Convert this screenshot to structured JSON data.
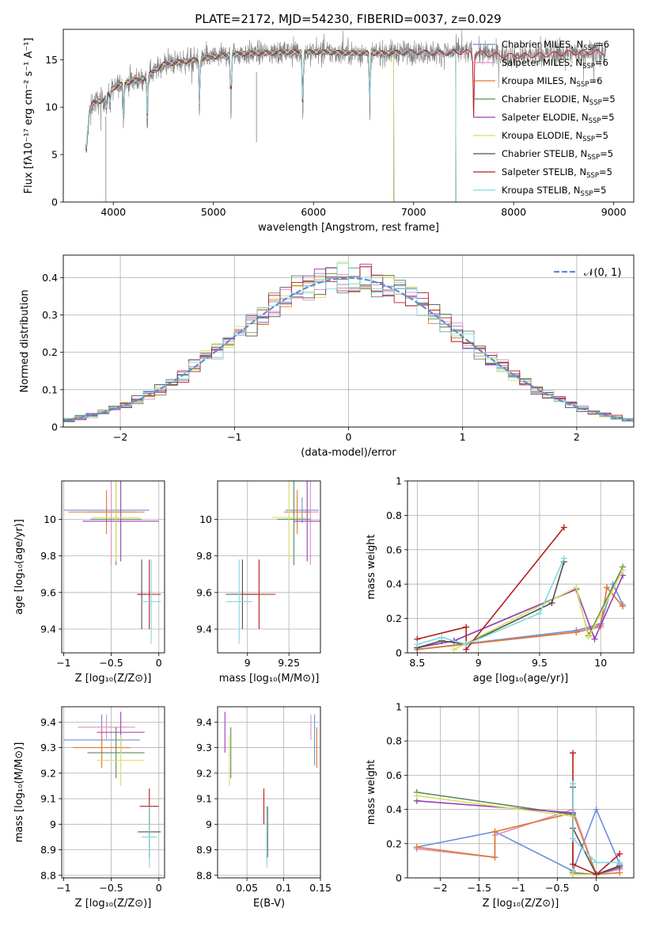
{
  "figure": {
    "title": "PLATE=2172, MJD=54230, FIBERID=0037, z=0.029"
  },
  "colors": {
    "Chabrier MILES": "#6b8fd8",
    "Salpeter MILES": "#e08fc0",
    "Kroupa MILES": "#e07a30",
    "Chabrier ELODIE": "#5a8a5a",
    "Salpeter ELODIE": "#9a3fb8",
    "Kroupa ELODIE": "#d8e060",
    "Chabrier STELIB": "#505050",
    "Salpeter STELIB": "#b81c1c",
    "Kroupa STELIB": "#80d8e0",
    "data": "#808080",
    "normal": "#5b8fd0",
    "grid": "#b0b0b0"
  },
  "legend_spectrum": [
    {
      "key": "Chabrier MILES",
      "pre": "Chabrier MILES, N",
      "sub": "SSP",
      "post": "=6"
    },
    {
      "key": "Salpeter MILES",
      "pre": "Salpeter MILES, N",
      "sub": "SSP",
      "post": "=6"
    },
    {
      "key": "Kroupa MILES",
      "pre": "Kroupa MILES, N",
      "sub": "SSP",
      "post": "=6"
    },
    {
      "key": "Chabrier ELODIE",
      "pre": "Chabrier ELODIE, N",
      "sub": "SSP",
      "post": "=5"
    },
    {
      "key": "Salpeter ELODIE",
      "pre": "Salpeter ELODIE, N",
      "sub": "SSP",
      "post": "=5"
    },
    {
      "key": "Kroupa ELODIE",
      "pre": "Kroupa ELODIE, N",
      "sub": "SSP",
      "post": "=5"
    },
    {
      "key": "Chabrier STELIB",
      "pre": "Chabrier STELIB, N",
      "sub": "SSP",
      "post": "=5"
    },
    {
      "key": "Salpeter STELIB",
      "pre": "Salpeter STELIB, N",
      "sub": "SSP",
      "post": "=5"
    },
    {
      "key": "Kroupa STELIB",
      "pre": "Kroupa STELIB, N",
      "sub": "SSP",
      "post": "=5"
    }
  ],
  "chart_data": [
    {
      "id": "spectrum",
      "type": "line",
      "xlabel": "wavelength [Angstrom, rest frame]",
      "ylabel": "Flux [fλ10⁻¹⁷ erg cm⁻² s⁻¹ A⁻¹]",
      "xlim": [
        3500,
        9200
      ],
      "ylim": [
        0,
        18.2
      ],
      "xticks": [
        4000,
        5000,
        6000,
        7000,
        8000,
        9000
      ],
      "yticks": [
        0,
        5,
        10,
        15
      ],
      "continuum": [
        [
          3730,
          5.5
        ],
        [
          3760,
          9.5
        ],
        [
          3800,
          10.5
        ],
        [
          3900,
          10.7
        ],
        [
          4000,
          12.0
        ],
        [
          4100,
          12.5
        ],
        [
          4300,
          13.0
        ],
        [
          4500,
          14.5
        ],
        [
          4700,
          14.8
        ],
        [
          4900,
          15.1
        ],
        [
          5200,
          15.6
        ],
        [
          5500,
          15.7
        ],
        [
          5800,
          15.8
        ],
        [
          6100,
          15.8
        ],
        [
          6400,
          15.7
        ],
        [
          6700,
          15.7
        ],
        [
          7000,
          15.8
        ],
        [
          7300,
          15.7
        ],
        [
          7420,
          15.8
        ],
        [
          7600,
          15.8
        ],
        [
          7800,
          15.5
        ],
        [
          8000,
          15.4
        ],
        [
          8300,
          15.5
        ],
        [
          8500,
          15.7
        ],
        [
          8800,
          15.8
        ],
        [
          8900,
          15.7
        ]
      ],
      "data_range": [
        3720,
        8920
      ],
      "dips": [
        [
          3933,
          3
        ],
        [
          3968,
          2
        ],
        [
          4102,
          8
        ],
        [
          4340,
          9
        ],
        [
          4861,
          10
        ],
        [
          5175,
          12
        ],
        [
          5893,
          13
        ],
        [
          6563,
          12
        ],
        [
          7600,
          14
        ]
      ],
      "model_ranges": [
        [
          3730,
          7420
        ],
        [
          3730,
          8900
        ],
        [
          3730,
          7420
        ],
        [
          3730,
          6800
        ],
        [
          3730,
          6800
        ],
        [
          3730,
          6800
        ],
        [
          3730,
          7420
        ],
        [
          3730,
          8900
        ],
        [
          3730,
          7420
        ]
      ]
    },
    {
      "id": "residuals",
      "type": "step",
      "xlabel": "(data-model)/error",
      "ylabel": "Normed distribution",
      "xlim": [
        -2.5,
        2.5
      ],
      "ylim": [
        0,
        0.46
      ],
      "xticks": [
        -2,
        -1,
        0,
        1,
        2
      ],
      "yticks": [
        0.0,
        0.1,
        0.2,
        0.3,
        0.4
      ],
      "bin_width": 0.1,
      "legend": {
        "label": "𝒩(0, 1)",
        "placement": "upper right"
      }
    },
    {
      "id": "age-vs-Z",
      "type": "errorbar",
      "xlabel": "Z [log₁₀(Z/Z⊙)]",
      "ylabel": "age  [log₁₀(age/yr)]",
      "xlim": [
        -1.02,
        0.06
      ],
      "ylim": [
        9.27,
        10.21
      ],
      "xticks": [
        -1.0,
        -0.5,
        0.0
      ],
      "yticks": [
        9.4,
        9.6,
        9.8,
        10.0
      ],
      "points": [
        {
          "m": "Chabrier MILES",
          "x": -0.55,
          "y": 10.05,
          "xe": 0.45,
          "ye": 0.07
        },
        {
          "m": "Salpeter MILES",
          "x": -0.5,
          "y": 10.04,
          "xe": 0.25,
          "ye": 0.29
        },
        {
          "m": "Kroupa MILES",
          "x": -0.55,
          "y": 10.04,
          "xe": 0.4,
          "ye": 0.12
        },
        {
          "m": "Chabrier ELODIE",
          "x": -0.45,
          "y": 10.0,
          "xe": 0.27,
          "ye": 0.25
        },
        {
          "m": "Salpeter ELODIE",
          "x": -0.4,
          "y": 9.99,
          "xe": 0.4,
          "ye": 0.22
        },
        {
          "m": "Kroupa ELODIE",
          "x": -0.45,
          "y": 10.01,
          "xe": 0.25,
          "ye": 0.24
        },
        {
          "m": "Chabrier STELIB",
          "x": -0.18,
          "y": 9.59,
          "xe": 0.05,
          "ye": 0.19
        },
        {
          "m": "Salpeter STELIB",
          "x": -0.1,
          "y": 9.59,
          "xe": 0.12,
          "ye": 0.19
        },
        {
          "m": "Kroupa STELIB",
          "x": -0.08,
          "y": 9.55,
          "xe": 0.1,
          "ye": 0.23
        }
      ]
    },
    {
      "id": "age-vs-mass",
      "type": "errorbar",
      "xlabel": "mass [log₁₀(M/M⊙)]",
      "xlim": [
        8.82,
        9.44
      ],
      "ylim": [
        9.27,
        10.21
      ],
      "xticks": [
        9.0,
        9.25
      ],
      "yticks": [
        9.4,
        9.6,
        9.8,
        10.0
      ],
      "points": [
        {
          "m": "Chabrier MILES",
          "x": 9.33,
          "y": 10.05,
          "xe": 0.1,
          "ye": 0.07
        },
        {
          "m": "Salpeter MILES",
          "x": 9.38,
          "y": 10.04,
          "xe": 0.05,
          "ye": 0.29
        },
        {
          "m": "Kroupa MILES",
          "x": 9.3,
          "y": 10.04,
          "xe": 0.08,
          "ye": 0.12
        },
        {
          "m": "Chabrier ELODIE",
          "x": 9.28,
          "y": 10.0,
          "xe": 0.1,
          "ye": 0.25
        },
        {
          "m": "Salpeter ELODIE",
          "x": 9.36,
          "y": 9.99,
          "xe": 0.08,
          "ye": 0.22
        },
        {
          "m": "Kroupa ELODIE",
          "x": 9.25,
          "y": 10.01,
          "xe": 0.1,
          "ye": 0.24
        },
        {
          "m": "Chabrier STELIB",
          "x": 8.97,
          "y": 9.59,
          "xe": 0.1,
          "ye": 0.19
        },
        {
          "m": "Salpeter STELIB",
          "x": 9.07,
          "y": 9.59,
          "xe": 0.1,
          "ye": 0.19
        },
        {
          "m": "Kroupa STELIB",
          "x": 8.95,
          "y": 9.55,
          "xe": 0.08,
          "ye": 0.23
        }
      ]
    },
    {
      "id": "weight-vs-age",
      "type": "line",
      "xlabel": "age  [log₁₀(age/yr)]",
      "ylabel": "mass weight",
      "xlim": [
        8.42,
        10.27
      ],
      "ylim": [
        0,
        1.0
      ],
      "xticks": [
        8.5,
        9.0,
        9.5,
        10.0
      ],
      "yticks": [
        0.0,
        0.2,
        0.4,
        0.6,
        0.8,
        1.0
      ],
      "series": [
        {
          "m": "Chabrier MILES",
          "x": [
            8.5,
            9.8,
            10.0,
            10.1,
            10.18
          ],
          "y": [
            0.02,
            0.13,
            0.17,
            0.4,
            0.28
          ]
        },
        {
          "m": "Salpeter MILES",
          "x": [
            8.5,
            9.8,
            10.0,
            10.05,
            10.18
          ],
          "y": [
            0.02,
            0.12,
            0.15,
            0.38,
            0.27
          ]
        },
        {
          "m": "Kroupa MILES",
          "x": [
            8.5,
            9.8,
            10.0,
            10.05,
            10.18
          ],
          "y": [
            0.02,
            0.12,
            0.16,
            0.38,
            0.27
          ]
        },
        {
          "m": "Chabrier ELODIE",
          "x": [
            8.5,
            8.8,
            9.8,
            9.9,
            10.18
          ],
          "y": [
            0.03,
            0.07,
            0.37,
            0.1,
            0.5
          ]
        },
        {
          "m": "Salpeter ELODIE",
          "x": [
            8.5,
            8.8,
            9.8,
            9.95,
            10.18
          ],
          "y": [
            0.03,
            0.07,
            0.37,
            0.08,
            0.45
          ]
        },
        {
          "m": "Kroupa ELODIE",
          "x": [
            8.8,
            9.8,
            9.9,
            10.18
          ],
          "y": [
            0.02,
            0.38,
            0.09,
            0.48
          ]
        },
        {
          "m": "Chabrier STELIB",
          "x": [
            8.5,
            8.7,
            8.9,
            9.6,
            9.7
          ],
          "y": [
            0.03,
            0.07,
            0.05,
            0.29,
            0.53
          ]
        },
        {
          "m": "Salpeter STELIB",
          "x": [
            8.5,
            8.9,
            8.9,
            9.7
          ],
          "y": [
            0.08,
            0.15,
            0.02,
            0.73
          ]
        },
        {
          "m": "Kroupa STELIB",
          "x": [
            8.5,
            8.7,
            8.9,
            9.5,
            9.7
          ],
          "y": [
            0.05,
            0.09,
            0.05,
            0.23,
            0.55
          ]
        }
      ]
    },
    {
      "id": "mass-vs-Z",
      "type": "errorbar",
      "xlabel": "Z [log₁₀(Z/Z⊙)]",
      "ylabel": "mass [log₁₀(M/M⊙)]",
      "xlim": [
        -1.02,
        0.06
      ],
      "ylim": [
        8.79,
        9.46
      ],
      "xticks": [
        -1.0,
        -0.5,
        0.0
      ],
      "yticks": [
        8.8,
        8.9,
        9.0,
        9.1,
        9.2,
        9.3,
        9.4
      ],
      "points": [
        {
          "m": "Chabrier MILES",
          "x": -0.6,
          "y": 9.33,
          "xe": 0.4,
          "ye": 0.1
        },
        {
          "m": "Salpeter MILES",
          "x": -0.55,
          "y": 9.38,
          "xe": 0.3,
          "ye": 0.05
        },
        {
          "m": "Kroupa MILES",
          "x": -0.6,
          "y": 9.3,
          "xe": 0.3,
          "ye": 0.08
        },
        {
          "m": "Chabrier ELODIE",
          "x": -0.45,
          "y": 9.28,
          "xe": 0.3,
          "ye": 0.1
        },
        {
          "m": "Salpeter ELODIE",
          "x": -0.4,
          "y": 9.36,
          "xe": 0.25,
          "ye": 0.08
        },
        {
          "m": "Kroupa ELODIE",
          "x": -0.4,
          "y": 9.25,
          "xe": 0.25,
          "ye": 0.1
        },
        {
          "m": "Chabrier STELIB",
          "x": -0.1,
          "y": 8.97,
          "xe": 0.12,
          "ye": 0.1
        },
        {
          "m": "Salpeter STELIB",
          "x": -0.1,
          "y": 9.07,
          "xe": 0.1,
          "ye": 0.07
        },
        {
          "m": "Kroupa STELIB",
          "x": -0.1,
          "y": 8.95,
          "xe": 0.08,
          "ye": 0.12
        }
      ]
    },
    {
      "id": "mass-vs-EBV",
      "type": "errorbar",
      "xlabel": "E(B-V)",
      "xlim": [
        0.01,
        0.15
      ],
      "ylim": [
        8.79,
        9.46
      ],
      "xticks": [
        0.05,
        0.1,
        0.15
      ],
      "yticks": [
        8.8,
        8.9,
        9.0,
        9.1,
        9.2,
        9.3,
        9.4
      ],
      "points": [
        {
          "m": "Chabrier MILES",
          "x": 0.142,
          "y": 9.33,
          "xe": 0.0,
          "ye": 0.1
        },
        {
          "m": "Salpeter MILES",
          "x": 0.137,
          "y": 9.38,
          "xe": 0.0,
          "ye": 0.05
        },
        {
          "m": "Kroupa MILES",
          "x": 0.145,
          "y": 9.3,
          "xe": 0.0,
          "ye": 0.08
        },
        {
          "m": "Chabrier ELODIE",
          "x": 0.028,
          "y": 9.28,
          "xe": 0.0,
          "ye": 0.1
        },
        {
          "m": "Salpeter ELODIE",
          "x": 0.02,
          "y": 9.36,
          "xe": 0.0,
          "ye": 0.08
        },
        {
          "m": "Kroupa ELODIE",
          "x": 0.026,
          "y": 9.25,
          "xe": 0.0,
          "ye": 0.1
        },
        {
          "m": "Chabrier STELIB",
          "x": 0.078,
          "y": 8.97,
          "xe": 0.0,
          "ye": 0.1
        },
        {
          "m": "Salpeter STELIB",
          "x": 0.073,
          "y": 9.07,
          "xe": 0.0,
          "ye": 0.07
        },
        {
          "m": "Kroupa STELIB",
          "x": 0.077,
          "y": 8.95,
          "xe": 0.0,
          "ye": 0.12
        }
      ]
    },
    {
      "id": "weight-vs-Z",
      "type": "line",
      "xlabel": "Z [log₁₀(Z/Z⊙)]",
      "ylabel": "mass weight",
      "xlim": [
        -2.42,
        0.48
      ],
      "ylim": [
        0,
        1.0
      ],
      "xticks": [
        -2.0,
        -1.5,
        -1.0,
        -0.5,
        0.0
      ],
      "yticks": [
        0.0,
        0.2,
        0.4,
        0.6,
        0.8,
        1.0
      ],
      "series": [
        {
          "m": "Chabrier MILES",
          "x": [
            -2.3,
            -1.3,
            -0.3,
            0.0,
            0.3
          ],
          "y": [
            0.18,
            0.27,
            0.04,
            0.4,
            0.08
          ]
        },
        {
          "m": "Salpeter MILES",
          "x": [
            -2.3,
            -1.3,
            -1.3,
            -0.3,
            0.0,
            0.3
          ],
          "y": [
            0.17,
            0.12,
            0.25,
            0.4,
            0.02,
            0.05
          ]
        },
        {
          "m": "Kroupa MILES",
          "x": [
            -2.3,
            -1.3,
            -1.3,
            -0.3,
            0.0,
            0.3
          ],
          "y": [
            0.18,
            0.12,
            0.27,
            0.38,
            0.02,
            0.03
          ]
        },
        {
          "m": "Chabrier ELODIE",
          "x": [
            -2.3,
            -0.3,
            -0.3,
            0.0,
            0.3
          ],
          "y": [
            0.5,
            0.37,
            0.03,
            0.02,
            0.07
          ]
        },
        {
          "m": "Salpeter ELODIE",
          "x": [
            -2.3,
            -0.3,
            -0.3,
            0.0,
            0.3
          ],
          "y": [
            0.45,
            0.38,
            0.02,
            0.02,
            0.06
          ]
        },
        {
          "m": "Kroupa ELODIE",
          "x": [
            -2.3,
            -0.3,
            -0.3,
            0.0,
            0.3
          ],
          "y": [
            0.48,
            0.36,
            0.02,
            0.02,
            0.07
          ]
        },
        {
          "m": "Chabrier STELIB",
          "x": [
            -0.3,
            -0.3,
            0.0,
            0.3
          ],
          "y": [
            0.53,
            0.29,
            0.02,
            0.07
          ]
        },
        {
          "m": "Salpeter STELIB",
          "x": [
            -0.3,
            -0.3,
            0.0,
            0.3
          ],
          "y": [
            0.73,
            0.08,
            0.02,
            0.14
          ]
        },
        {
          "m": "Kroupa STELIB",
          "x": [
            -0.3,
            -0.3,
            0.0,
            0.3
          ],
          "y": [
            0.55,
            0.23,
            0.09,
            0.09
          ]
        }
      ]
    }
  ]
}
